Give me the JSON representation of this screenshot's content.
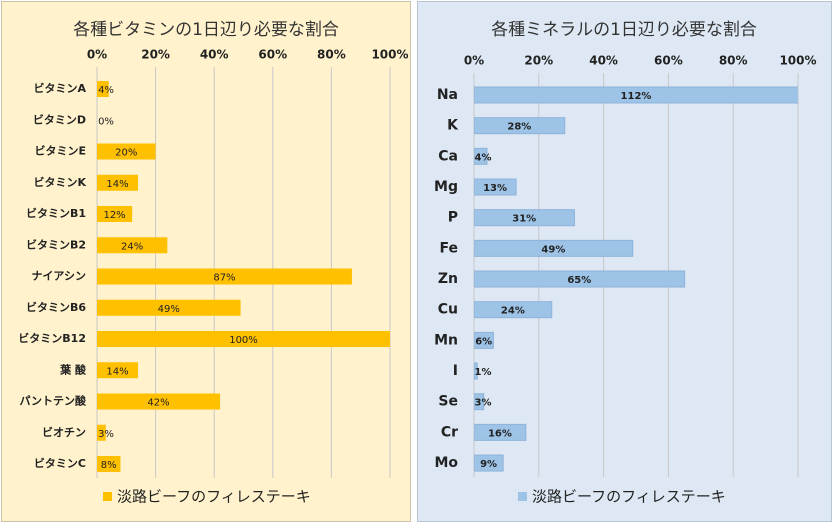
{
  "chart_data": [
    {
      "type": "bar",
      "orientation": "horizontal",
      "title": "各種ビタミンの1日辺り必要な割合",
      "categories": [
        "ビタミンA",
        "ビタミンD",
        "ビタミンE",
        "ビタミンK",
        "ビタミンB1",
        "ビタミンB2",
        "ナイアシン",
        "ビタミンB6",
        "ビタミンB12",
        "葉 酸",
        "パントテン酸",
        "ビオチン",
        "ビタミンC"
      ],
      "series": [
        {
          "name": "淡路ビーフのフィレステーキ",
          "color": "#ffc000",
          "values": [
            4,
            0,
            20,
            14,
            12,
            24,
            87,
            49,
            100,
            14,
            42,
            3,
            8
          ],
          "value_labels": [
            "4%",
            "0%",
            "20%",
            "14%",
            "12%",
            "24%",
            "87%",
            "49%",
            "100%",
            "14%",
            "42%",
            "3%",
            "8%"
          ]
        }
      ],
      "ylim": [
        0,
        100
      ],
      "yticks": [
        {
          "value": 0,
          "label": "0%"
        },
        {
          "value": 20,
          "label": "20%"
        },
        {
          "value": 40,
          "label": "40%"
        },
        {
          "value": 60,
          "label": "60%"
        },
        {
          "value": 80,
          "label": "80%"
        },
        {
          "value": 100,
          "label": "100%"
        }
      ],
      "grid": true,
      "legend": "bottom"
    },
    {
      "type": "bar",
      "orientation": "horizontal",
      "title": "各種ミネラルの1日辺り必要な割合",
      "categories": [
        "Na",
        "K",
        "Ca",
        "Mg",
        "P",
        "Fe",
        "Zn",
        "Cu",
        "Mn",
        "I",
        "Se",
        "Cr",
        "Mo"
      ],
      "series": [
        {
          "name": "淡路ビーフのフィレステーキ",
          "color": "#9dc3e6",
          "values": [
            112,
            28,
            4,
            13,
            31,
            49,
            65,
            24,
            6,
            1,
            3,
            16,
            9
          ],
          "value_labels": [
            "112%",
            "28%",
            "4%",
            "13%",
            "31%",
            "49%",
            "65%",
            "24%",
            "6%",
            "1%",
            "3%",
            "16%",
            "9%"
          ]
        }
      ],
      "ylim": [
        0,
        100
      ],
      "yticks": [
        {
          "value": 0,
          "label": "0%"
        },
        {
          "value": 20,
          "label": "20%"
        },
        {
          "value": 40,
          "label": "40%"
        },
        {
          "value": 60,
          "label": "60%"
        },
        {
          "value": 80,
          "label": "80%"
        },
        {
          "value": 100,
          "label": "100%"
        }
      ],
      "grid": true,
      "legend": "bottom"
    }
  ]
}
